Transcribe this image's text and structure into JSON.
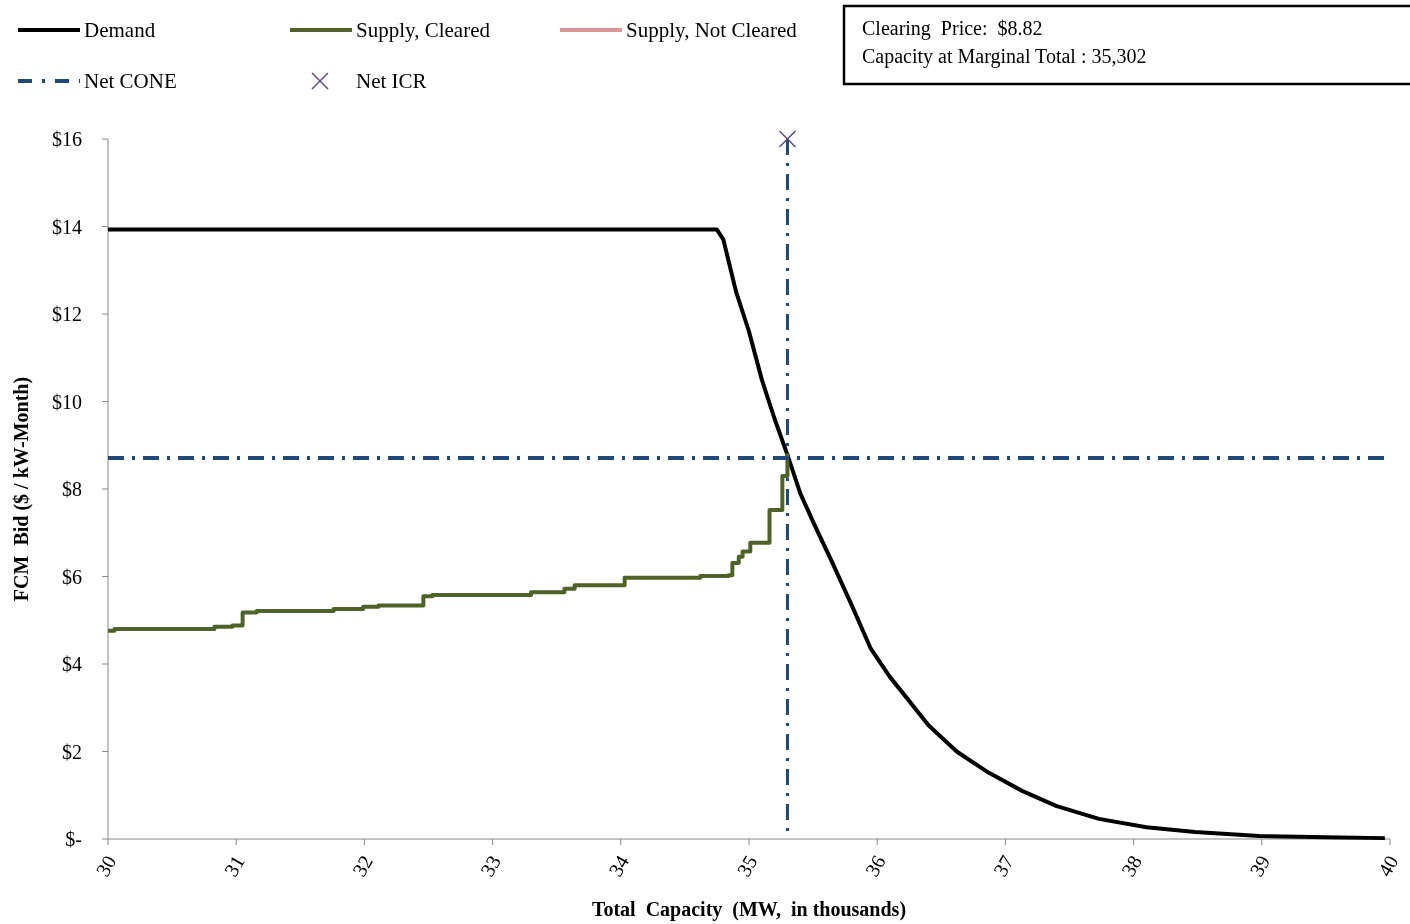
{
  "chart_data": {
    "type": "line",
    "xlabel": "Total  Capacity  (MW,  in thousands)",
    "ylabel": "FCM  Bid ($ / kW-Month)",
    "xlim": [
      30,
      40
    ],
    "xticks": [
      30,
      31,
      32,
      33,
      34,
      35,
      36,
      37,
      38,
      39,
      40
    ],
    "ylim": [
      0,
      16
    ],
    "yticks": [
      {
        "value": 0,
        "label": "$-"
      },
      {
        "value": 2,
        "label": "$2"
      },
      {
        "value": 4,
        "label": "$4"
      },
      {
        "value": 6,
        "label": "$6"
      },
      {
        "value": 8,
        "label": "$8"
      },
      {
        "value": 10,
        "label": "$10"
      },
      {
        "value": 12,
        "label": "$12"
      },
      {
        "value": 14,
        "label": "$14"
      },
      {
        "value": 16,
        "label": "$16"
      }
    ],
    "grid": false,
    "legend": "top",
    "annotations": [
      "Clearing  Price:  $8.82",
      "Capacity at Marginal Total : 35,302"
    ],
    "ref_lines": [
      {
        "axis": "x",
        "value": 35.3,
        "label": null,
        "color": "#1f497d",
        "line_style": "dashed"
      }
    ],
    "series": [
      {
        "name": "Demand",
        "color": "#000000",
        "line_style": "solid",
        "x": [
          30,
          34.75,
          34.8,
          34.9,
          35.0,
          35.1,
          35.2,
          35.3,
          35.4,
          35.5,
          35.64,
          35.8,
          35.95,
          36.1,
          36.21,
          36.4,
          36.62,
          36.85,
          37.13,
          37.4,
          37.73,
          38.1,
          38.48,
          38.98,
          39.5,
          39.96
        ],
        "values": [
          13.93,
          13.93,
          13.7,
          12.5,
          11.6,
          10.5,
          9.6,
          8.78,
          7.9,
          7.25,
          6.38,
          5.35,
          4.35,
          3.7,
          3.3,
          2.6,
          2.0,
          1.55,
          1.1,
          0.75,
          0.46,
          0.27,
          0.16,
          0.07,
          0.04,
          0.02
        ]
      },
      {
        "name": "Supply, Cleared",
        "type": "step",
        "color": "#4f6228",
        "line_style": "solid",
        "x": [
          30,
          30.05,
          30.83,
          30.97,
          31.05,
          31.16,
          31.76,
          31.99,
          32.11,
          32.46,
          32.53,
          33.3,
          33.56,
          33.64,
          34.03,
          34.62,
          34.84,
          34.87,
          34.92,
          34.95,
          35.01,
          35.16,
          35.26,
          35.3
        ],
        "values": [
          4.76,
          4.8,
          4.85,
          4.88,
          5.18,
          5.21,
          5.26,
          5.31,
          5.34,
          5.55,
          5.58,
          5.64,
          5.72,
          5.8,
          5.97,
          6.01,
          6.03,
          6.31,
          6.45,
          6.57,
          6.77,
          7.52,
          8.3,
          8.82
        ]
      },
      {
        "name": "Supply, Not Cleared",
        "type": "line",
        "color": "#d99694",
        "line_style": "solid"
      },
      {
        "name": "Net CONE",
        "type": "line",
        "color": "#1f497d",
        "line_style": "dashed",
        "x": [
          30,
          40
        ],
        "values": [
          8.71,
          8.71
        ]
      },
      {
        "name": "Net ICR",
        "type": "scatter",
        "color": "#604a7b",
        "marker": "cross",
        "x": [
          35.3
        ],
        "values": [
          16
        ]
      }
    ]
  }
}
